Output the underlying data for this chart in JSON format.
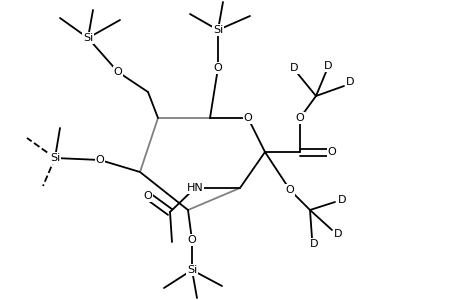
{
  "bg_color": "#ffffff",
  "figsize": [
    4.6,
    3.0
  ],
  "dpi": 100,
  "lw": 1.3,
  "fs": 8.0,
  "gray": "#808080",
  "black": "#000000"
}
